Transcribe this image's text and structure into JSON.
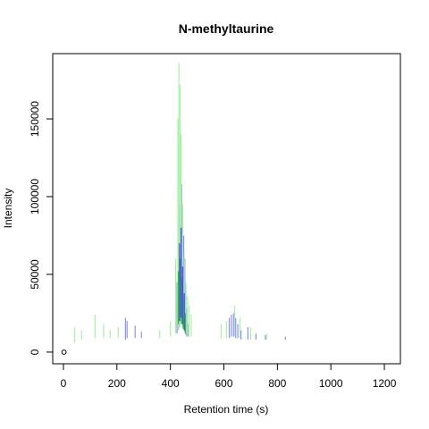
{
  "chart_data": {
    "type": "line",
    "title": "N-methyltaurine",
    "xlabel": "Retention time (s)",
    "ylabel": "Intensity",
    "xlim": [
      -40,
      1260
    ],
    "ylim": [
      -7500,
      192000
    ],
    "x_ticks": [
      0,
      200,
      400,
      600,
      800,
      1000,
      1200
    ],
    "x_tick_labels": [
      "0",
      "200",
      "400",
      "600",
      "800",
      "1000",
      "1200"
    ],
    "y_ticks": [
      0,
      50000,
      100000,
      150000
    ],
    "y_tick_labels": [
      "0",
      "50000",
      "100000",
      "150000"
    ],
    "grid": false,
    "series": [
      {
        "color": "#8f8ff0",
        "segments": [
          {
            "x": 232,
            "lo": 8000,
            "hi": 22000
          },
          {
            "x": 238,
            "lo": 9000,
            "hi": 20000
          },
          {
            "x": 268,
            "lo": 9000,
            "hi": 17000
          },
          {
            "x": 292,
            "lo": 9000,
            "hi": 13000
          },
          {
            "x": 425,
            "lo": 12000,
            "hi": 45000
          },
          {
            "x": 430,
            "lo": 14000,
            "hi": 72000
          },
          {
            "x": 434,
            "lo": 16000,
            "hi": 95000
          },
          {
            "x": 438,
            "lo": 18000,
            "hi": 112000
          },
          {
            "x": 442,
            "lo": 20000,
            "hi": 108000
          },
          {
            "x": 446,
            "lo": 18000,
            "hi": 92000
          },
          {
            "x": 450,
            "lo": 15000,
            "hi": 75000
          },
          {
            "x": 454,
            "lo": 13000,
            "hi": 60000
          },
          {
            "x": 458,
            "lo": 11000,
            "hi": 42000
          },
          {
            "x": 462,
            "lo": 10000,
            "hi": 28000
          },
          {
            "x": 468,
            "lo": 10000,
            "hi": 18000
          },
          {
            "x": 620,
            "lo": 9000,
            "hi": 22000
          },
          {
            "x": 628,
            "lo": 10000,
            "hi": 24000
          },
          {
            "x": 636,
            "lo": 10000,
            "hi": 25000
          },
          {
            "x": 644,
            "lo": 9000,
            "hi": 22000
          },
          {
            "x": 652,
            "lo": 9000,
            "hi": 18000
          },
          {
            "x": 664,
            "lo": 8000,
            "hi": 14000
          },
          {
            "x": 690,
            "lo": 8000,
            "hi": 16000
          },
          {
            "x": 720,
            "lo": 8000,
            "hi": 12000
          },
          {
            "x": 755,
            "lo": 8000,
            "hi": 11000
          },
          {
            "x": 830,
            "lo": 8000,
            "hi": 10000
          }
        ]
      },
      {
        "color": "#a8f0a8",
        "segments": [
          {
            "x": 42,
            "lo": 6000,
            "hi": 16000
          },
          {
            "x": 68,
            "lo": 8000,
            "hi": 14000
          },
          {
            "x": 118,
            "lo": 9000,
            "hi": 24000
          },
          {
            "x": 150,
            "lo": 9000,
            "hi": 18000
          },
          {
            "x": 175,
            "lo": 9000,
            "hi": 14000
          },
          {
            "x": 205,
            "lo": 9000,
            "hi": 16000
          },
          {
            "x": 360,
            "lo": 9000,
            "hi": 14000
          },
          {
            "x": 400,
            "lo": 10000,
            "hi": 20000
          },
          {
            "x": 420,
            "lo": 12000,
            "hi": 60000
          },
          {
            "x": 428,
            "lo": 14000,
            "hi": 150000
          },
          {
            "x": 432,
            "lo": 16000,
            "hi": 186000
          },
          {
            "x": 436,
            "lo": 18000,
            "hi": 172000
          },
          {
            "x": 440,
            "lo": 18000,
            "hi": 140000
          },
          {
            "x": 446,
            "lo": 16000,
            "hi": 95000
          },
          {
            "x": 452,
            "lo": 14000,
            "hi": 62000
          },
          {
            "x": 458,
            "lo": 12000,
            "hi": 45000
          },
          {
            "x": 464,
            "lo": 11000,
            "hi": 36000
          },
          {
            "x": 470,
            "lo": 10000,
            "hi": 30000
          },
          {
            "x": 478,
            "lo": 10000,
            "hi": 24000
          },
          {
            "x": 590,
            "lo": 9000,
            "hi": 18000
          },
          {
            "x": 610,
            "lo": 9000,
            "hi": 20000
          },
          {
            "x": 640,
            "lo": 10000,
            "hi": 30000
          },
          {
            "x": 660,
            "lo": 9000,
            "hi": 22000
          },
          {
            "x": 700,
            "lo": 8000,
            "hi": 16000
          },
          {
            "x": 760,
            "lo": 8000,
            "hi": 12000
          }
        ]
      },
      {
        "color": "#22c622",
        "segments": [
          {
            "x": 430,
            "lo": 18000,
            "hi": 52000
          },
          {
            "x": 436,
            "lo": 20000,
            "hi": 60000
          },
          {
            "x": 442,
            "lo": 18000,
            "hi": 48000
          },
          {
            "x": 448,
            "lo": 15000,
            "hi": 35000
          },
          {
            "x": 456,
            "lo": 12000,
            "hi": 25000
          }
        ]
      },
      {
        "color": "#4a4ae0",
        "segments": [
          {
            "x": 434,
            "lo": 20000,
            "hi": 70000
          },
          {
            "x": 440,
            "lo": 22000,
            "hi": 80000
          },
          {
            "x": 446,
            "lo": 18000,
            "hi": 55000
          },
          {
            "x": 452,
            "lo": 14000,
            "hi": 38000
          }
        ]
      }
    ],
    "point": {
      "x": 2,
      "y": 0
    }
  }
}
